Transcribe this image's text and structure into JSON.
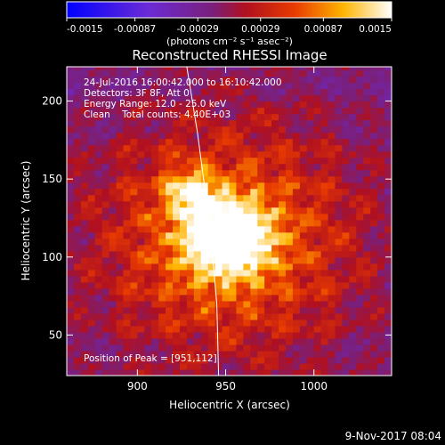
{
  "chart_data": {
    "type": "heatmap",
    "title": "Reconstructed RHESSI Image",
    "xlabel": "Heliocentric X (arcsec)",
    "ylabel": "Heliocentric Y (arcsec)",
    "xlim": [
      860,
      1044
    ],
    "ylim": [
      24,
      222
    ],
    "x_ticks": [
      {
        "value": 900,
        "label": "900"
      },
      {
        "value": 950,
        "label": "950"
      },
      {
        "value": 1000,
        "label": "1000"
      }
    ],
    "y_ticks": [
      {
        "value": 50,
        "label": "50"
      },
      {
        "value": 100,
        "label": "100"
      },
      {
        "value": 150,
        "label": "150"
      },
      {
        "value": 200,
        "label": "200"
      }
    ],
    "colorbar": {
      "min": -0.0015,
      "max": 0.0015,
      "ticks": [
        {
          "value": -0.0015,
          "label": "-0.0015"
        },
        {
          "value": -0.00087,
          "label": "-0.00087"
        },
        {
          "value": -0.00029,
          "label": "-0.00029"
        },
        {
          "value": 0.00029,
          "label": "0.00029"
        },
        {
          "value": 0.00087,
          "label": "0.00087"
        },
        {
          "value": 0.0015,
          "label": "0.0015"
        }
      ],
      "unit": "(photons cm⁻² s⁻¹ asec⁻²)",
      "colormap": "blue-purple-red-yellow-white"
    },
    "annotations": [
      "24-Jul-2016 16:00:42.000 to 16:10:42.000",
      "Detectors: 3F 8F, Att 0",
      "Energy Range: 12.0 - 25.0 keV",
      "Clean    Total counts: 4.40E+03"
    ],
    "peak_label": "Position of Peak = [951,112]",
    "peak": [
      951,
      112
    ],
    "limb_curve": [
      [
        928,
        222
      ],
      [
        934,
        180
      ],
      [
        941,
        120
      ],
      [
        945,
        70
      ],
      [
        946,
        24
      ]
    ]
  },
  "footer": {
    "date": "9-Nov-2017 08:04"
  }
}
